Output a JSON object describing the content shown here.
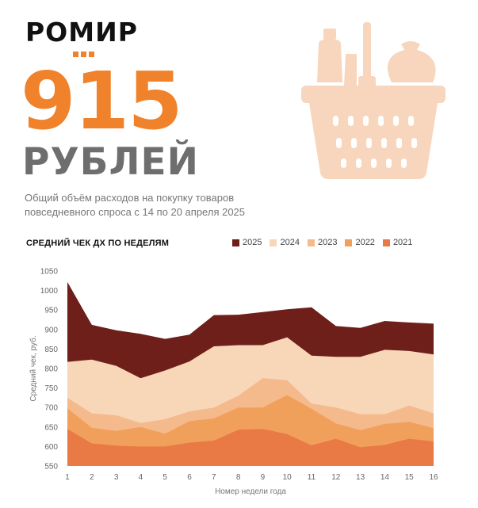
{
  "brand": {
    "name": "РОМИР",
    "accent": "#F0822B",
    "dot_color": "#F0822B"
  },
  "headline": {
    "value": "915",
    "unit": "РУБЛЕЙ",
    "value_color": "#F0822B",
    "unit_color": "#6E6E6E"
  },
  "subtitle_lines": [
    "Общий объём расходов на покупку товаров",
    "повседневного спроса с 14 по 20 апреля 2025"
  ],
  "basket_icon": {
    "name": "grocery-basket-icon",
    "color": "#F8D6BD"
  },
  "chart_data": {
    "type": "area",
    "title": "СРЕДНИЙ ЧЕК ДХ ПО НЕДЕЛЯМ",
    "xlabel": "Номер недели года",
    "ylabel": "Средний чек, руб.",
    "ylim": [
      550,
      1050
    ],
    "yticks": [
      550,
      600,
      650,
      700,
      750,
      800,
      850,
      900,
      950,
      1000,
      1050
    ],
    "x": [
      1,
      2,
      3,
      4,
      5,
      6,
      7,
      8,
      9,
      10,
      11,
      12,
      13,
      14,
      15,
      16
    ],
    "grid": false,
    "legend_position": "top-right",
    "series": [
      {
        "name": "2021",
        "color": "#E97A45",
        "values": [
          645,
          608,
          602,
          600,
          600,
          610,
          615,
          643,
          645,
          632,
          603,
          620,
          598,
          604,
          620,
          613
        ]
      },
      {
        "name": "2022",
        "color": "#F1A05C",
        "values": [
          698,
          648,
          640,
          650,
          633,
          665,
          672,
          700,
          700,
          732,
          697,
          659,
          642,
          658,
          663,
          647
        ]
      },
      {
        "name": "2023",
        "color": "#F5BA8C",
        "values": [
          725,
          685,
          680,
          660,
          670,
          690,
          700,
          730,
          775,
          770,
          710,
          700,
          683,
          683,
          705,
          685
        ]
      },
      {
        "name": "2024",
        "color": "#F8D6B8",
        "values": [
          817,
          823,
          807,
          775,
          795,
          818,
          857,
          860,
          860,
          880,
          833,
          830,
          830,
          848,
          845,
          836
        ]
      },
      {
        "name": "2025",
        "color": "#6E1F1A",
        "values": [
          1022,
          912,
          898,
          889,
          876,
          887,
          937,
          938,
          945,
          952,
          957,
          909,
          904,
          922,
          918,
          915
        ]
      }
    ]
  }
}
